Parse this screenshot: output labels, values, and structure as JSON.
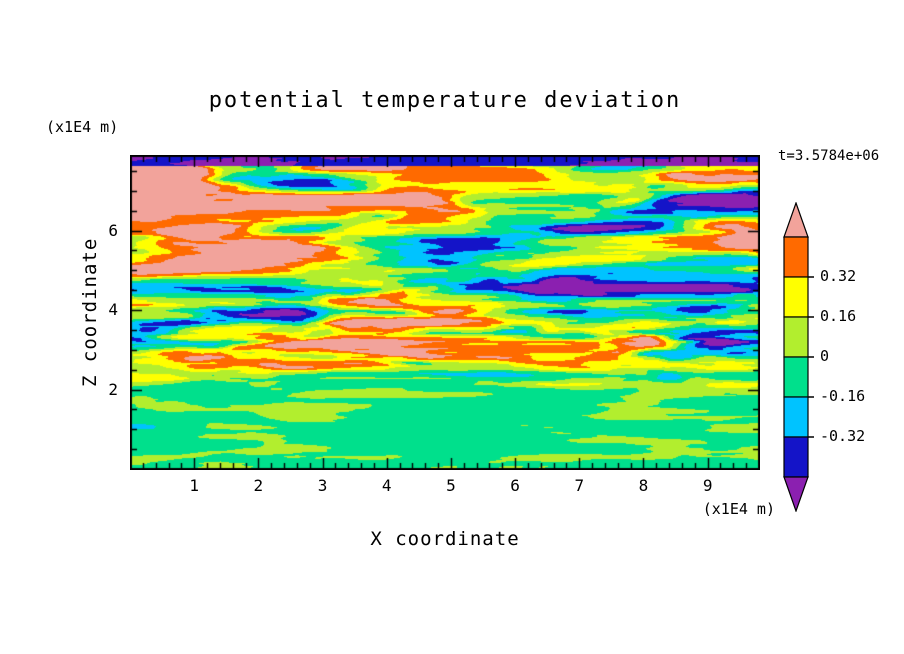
{
  "title": "potential temperature deviation",
  "timestamp": "t=3.5784e+06",
  "axes": {
    "x": {
      "label": "X coordinate",
      "unit": "(x1E4 m)",
      "ticks": [
        1,
        2,
        3,
        4,
        5,
        6,
        7,
        8,
        9
      ]
    },
    "z": {
      "label": "Z coordinate",
      "unit": "(x1E4 m)",
      "ticks": [
        2,
        4,
        6
      ]
    }
  },
  "colorbar": {
    "tick_labels": [
      "0.32",
      "0.16",
      "0",
      "-0.16",
      "-0.32"
    ]
  },
  "chart_data": {
    "type": "heatmap",
    "title": "potential temperature deviation",
    "xlabel": "X coordinate",
    "ylabel": "Z coordinate",
    "x_unit": "(x1E4 m)",
    "z_unit": "(x1E4 m)",
    "x_range": [
      0,
      9.8
    ],
    "z_range": [
      0,
      7.9
    ],
    "x_ticks": [
      1,
      2,
      3,
      4,
      5,
      6,
      7,
      8,
      9
    ],
    "z_ticks": [
      2,
      4,
      6
    ],
    "x_minor_step": 0.2,
    "z_minor_step": 0.5,
    "time_label": "t=3.5784e+06",
    "colorbar_labeled_levels": [
      0.32,
      0.16,
      0,
      -0.16,
      -0.32
    ],
    "contour_levels": [
      -0.48,
      -0.32,
      -0.16,
      0,
      0.16,
      0.32,
      0.48
    ],
    "band_colors_low_to_high": [
      "#8b20b0",
      "#1414c8",
      "#00c3ff",
      "#00e08c",
      "#b2ee2e",
      "#ffff00",
      "#ff6a00",
      "#f2a39b"
    ],
    "field_description": "Turbulent, horizontally layered potential-temperature deviation field: lower quarter nearly uniform spring green (-0.16 to 0) with yellow-green patches (0 to 0.16); above, thin alternating horizontal streaks of all color bands, with broad salmon (>0.48) layers and purple (<-0.48) / navy streaks dominating toward the top edge."
  }
}
